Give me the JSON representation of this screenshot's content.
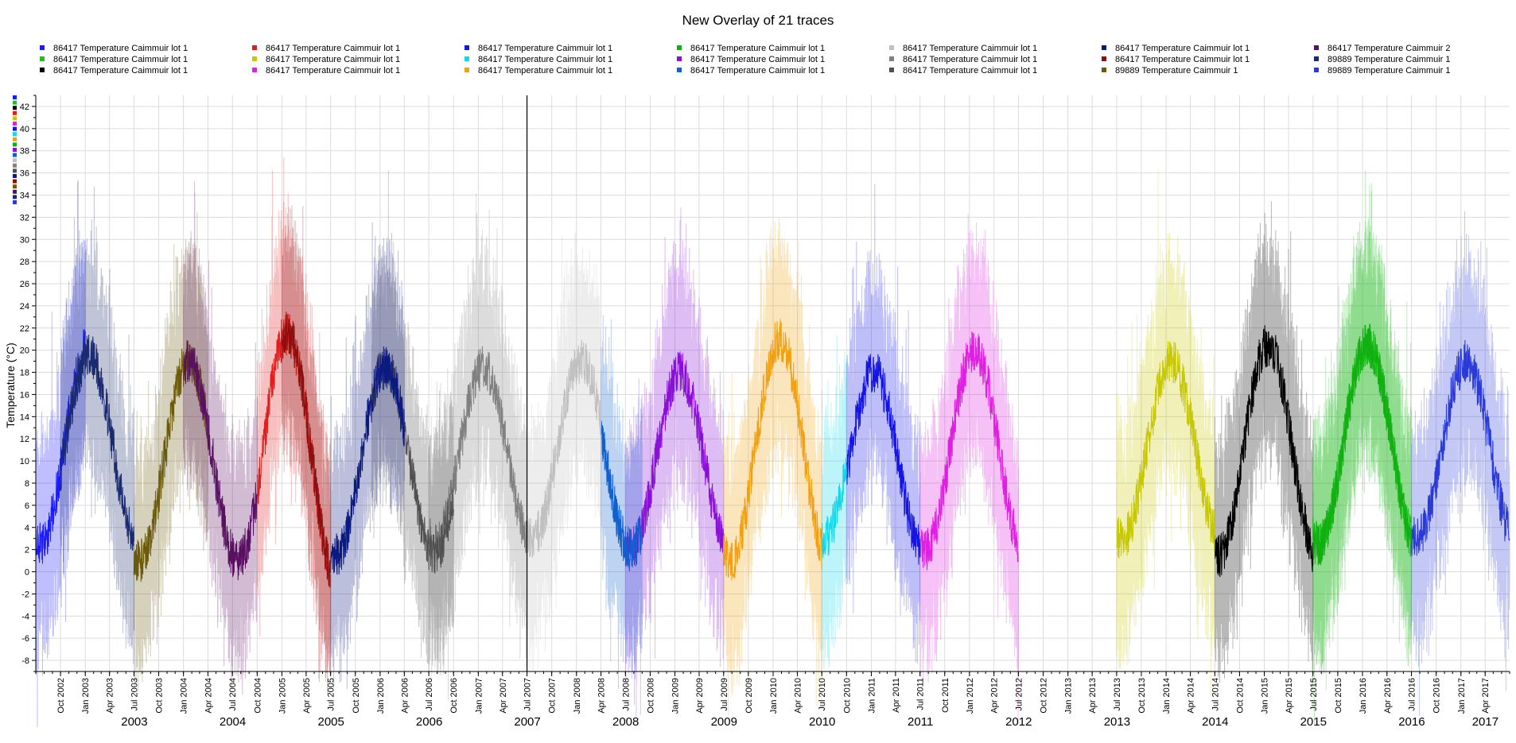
{
  "chart_data": {
    "type": "line",
    "title": "New Overlay of 21 traces",
    "ylabel": "Temperature (°C)",
    "xlabel": "",
    "ylim": [
      -9,
      43
    ],
    "xlim": [
      "2002-07-01",
      "2017-07-01"
    ],
    "yticks": [
      -8,
      -6,
      -4,
      -2,
      0,
      2,
      4,
      6,
      8,
      10,
      12,
      14,
      16,
      18,
      20,
      22,
      24,
      26,
      28,
      30,
      32,
      34,
      36,
      38,
      40,
      42
    ],
    "month_ticks": [
      "Oct 2002",
      "Jan 2003",
      "Apr 2003",
      "Jul 2003",
      "Oct 2003",
      "Jan 2004",
      "Apr 2004",
      "Jul 2004",
      "Oct 2004",
      "Jan 2005",
      "Apr 2005",
      "Jul 2005",
      "Oct 2005",
      "Jan 2006",
      "Apr 2006",
      "Jul 2006",
      "Oct 2006",
      "Jan 2007",
      "Apr 2007",
      "Jul 2007",
      "Oct 2007",
      "Jan 2008",
      "Apr 2008",
      "Jul 2008",
      "Oct 2008",
      "Jan 2009",
      "Apr 2009",
      "Jul 2009",
      "Oct 2009",
      "Jan 2010",
      "Apr 2010",
      "Jul 2010",
      "Oct 2010",
      "Jan 2011",
      "Apr 2011",
      "Jul 2011",
      "Oct 2011",
      "Jan 2012",
      "Apr 2012",
      "Jul 2012",
      "Oct 2012",
      "Jan 2013",
      "Apr 2013",
      "Jul 2013",
      "Oct 2013",
      "Jan 2014",
      "Apr 2014",
      "Jul 2014",
      "Oct 2014",
      "Jan 2015",
      "Apr 2015",
      "Jul 2015",
      "Oct 2015",
      "Jan 2016",
      "Apr 2016",
      "Jul 2016",
      "Oct 2016",
      "Jan 2017",
      "Apr 2017"
    ],
    "year_labels": [
      "2003",
      "2004",
      "2005",
      "2006",
      "2007",
      "2008",
      "2009",
      "2010",
      "2011",
      "2012",
      "2013",
      "2014",
      "2015",
      "2016",
      "2017"
    ],
    "cursor_date": "2007-07-01",
    "grid": true,
    "legend_position": "top",
    "series": [
      {
        "name": "86417  Temperature Caimmuir lot 1",
        "color": "#1a1aff",
        "start": "2002-07-01",
        "end": "2003-01-01",
        "mean": 11.5,
        "amp": 9,
        "peak": "2003-01-15"
      },
      {
        "name": "86417  Temperature Caimmuir lot 1",
        "color": "#1fbf1f",
        "start": "2015-07-01",
        "end": "2016-07-01",
        "mean": 11.5,
        "amp": 9,
        "peak": "2016-01-20"
      },
      {
        "name": "86417  Temperature Caimmuir lot 1",
        "color": "#000000",
        "start": "2014-07-01",
        "end": "2015-07-01",
        "mean": 11,
        "amp": 9.5,
        "peak": "2015-01-15"
      },
      {
        "name": "86417  Temperature Caimmuir lot 1",
        "color": "#e01e1e",
        "start": "2004-10-01",
        "end": "2005-07-01",
        "mean": 10.5,
        "amp": 11,
        "peak": "2005-01-20"
      },
      {
        "name": "86417  Temperature Caimmuir lot 1",
        "color": "#c8c800",
        "start": "2013-07-01",
        "end": "2014-07-01",
        "mean": 11,
        "amp": 8,
        "peak": "2014-01-20"
      },
      {
        "name": "86417  Temperature Caimmuir lot 1",
        "color": "#e020e0",
        "start": "2011-07-01",
        "end": "2012-07-01",
        "mean": 11,
        "amp": 9,
        "peak": "2012-01-20"
      },
      {
        "name": "86417  Temperature Caimmuir lot 1",
        "color": "#1414e6",
        "start": "2010-10-01",
        "end": "2011-07-01",
        "mean": 10,
        "amp": 8,
        "peak": "2011-01-10"
      },
      {
        "name": "86417  Temperature Caimmuir lot 1",
        "color": "#10d8e8",
        "start": "2010-07-01",
        "end": "2010-10-01",
        "mean": 11,
        "amp": 8,
        "peak": "2011-01-10"
      },
      {
        "name": "86417  Temperature Caimmuir lot 1",
        "color": "#f0a010",
        "start": "2009-07-01",
        "end": "2010-07-01",
        "mean": 11,
        "amp": 10,
        "peak": "2010-01-25"
      },
      {
        "name": "86417  Temperature Caimmuir lot 1",
        "color": "#10b010",
        "start": "2015-07-01",
        "end": "2016-07-01",
        "mean": 11.5,
        "amp": 9,
        "peak": "2016-01-20"
      },
      {
        "name": "86417  Temperature Caimmuir lot 1",
        "color": "#8a10d8",
        "start": "2008-07-01",
        "end": "2009-07-01",
        "mean": 10,
        "amp": 8,
        "peak": "2009-01-20"
      },
      {
        "name": "86417  Temperature Caimmuir lot 1",
        "color": "#1060d0",
        "start": "2008-04-01",
        "end": "2008-09-01",
        "mean": 10,
        "amp": 8,
        "peak": "2009-01-20"
      },
      {
        "name": "86417  Temperature Caimmuir lot 1",
        "color": "#c0c0c0",
        "start": "2007-07-01",
        "end": "2008-04-01",
        "mean": 11,
        "amp": 8,
        "peak": "2008-01-20"
      },
      {
        "name": "86417  Temperature Caimmuir lot 1",
        "color": "#808080",
        "start": "2006-07-01",
        "end": "2007-07-01",
        "mean": 10.5,
        "amp": 8,
        "peak": "2007-01-20"
      },
      {
        "name": "86417  Temperature Caimmuir lot 1",
        "color": "#505050",
        "start": "2005-12-01",
        "end": "2006-10-01",
        "mean": 10,
        "amp": 8.5,
        "peak": "2006-01-20"
      },
      {
        "name": "86417  Temperature Caimmuir lot 1",
        "color": "#0a1a80",
        "start": "2005-07-01",
        "end": "2006-04-01",
        "mean": 10,
        "amp": 8.5,
        "peak": "2006-01-20"
      },
      {
        "name": "86417  Temperature Caimmuir lot 1",
        "color": "#8a1010",
        "start": "2005-01-01",
        "end": "2005-07-01",
        "mean": 10.5,
        "amp": 11,
        "peak": "2005-01-20"
      },
      {
        "name": "89889  Temperature Caimmuir 1",
        "color": "#6a5a0a",
        "start": "2003-07-01",
        "end": "2004-04-01",
        "mean": 10,
        "amp": 9,
        "peak": "2004-01-20"
      },
      {
        "name": "86417  Temperature Caimmuir 2",
        "color": "#5a1060",
        "start": "2004-01-01",
        "end": "2004-10-01",
        "mean": 10,
        "amp": 9,
        "peak": "2004-01-20"
      },
      {
        "name": "89889  Temperature Caimmuir 1",
        "color": "#1a2a70",
        "start": "2002-10-01",
        "end": "2003-07-01",
        "mean": 11,
        "amp": 8.5,
        "peak": "2003-01-15"
      },
      {
        "name": "89889  Temperature Caimmuir 1",
        "color": "#2a3ad8",
        "start": "2016-07-01",
        "end": "2017-07-01",
        "mean": 11,
        "amp": 8,
        "peak": "2017-01-20"
      }
    ]
  }
}
